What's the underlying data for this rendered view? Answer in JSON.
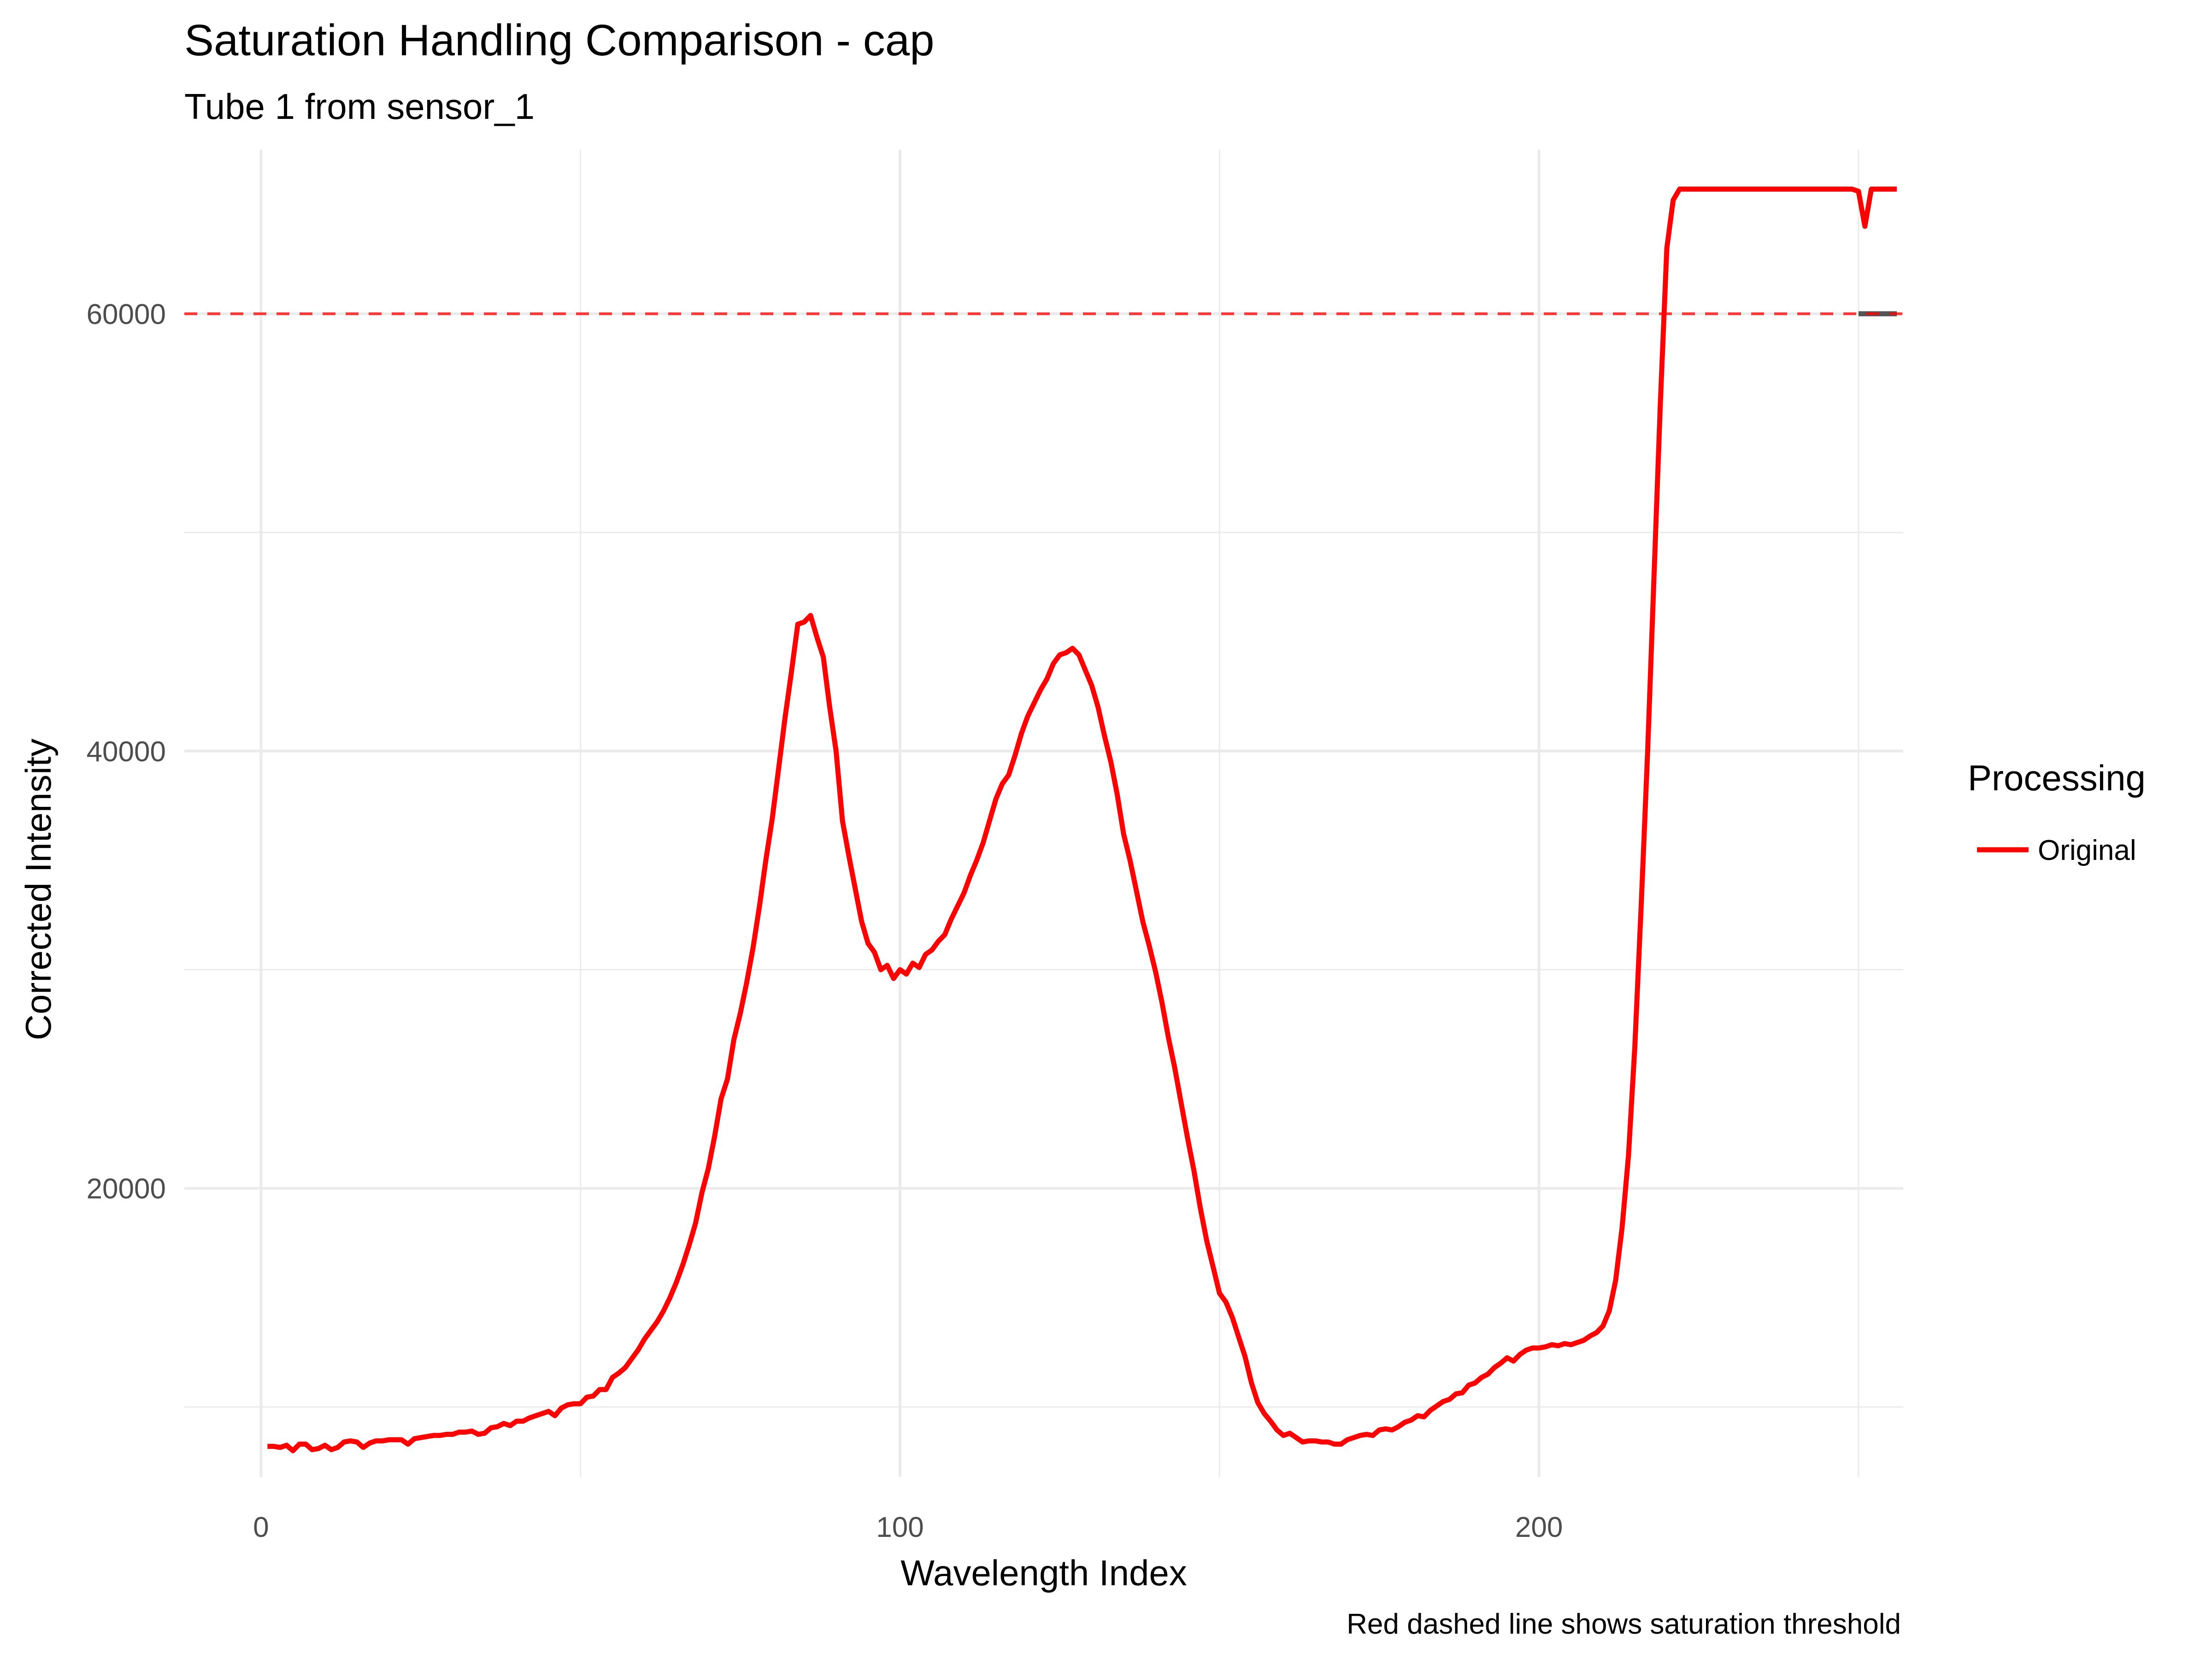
{
  "chart_data": {
    "type": "line",
    "title": "Saturation Handling Comparison - cap",
    "subtitle": "Tube 1 from sensor_1",
    "xlabel": "Wavelength Index",
    "ylabel": "Corrected Intensity",
    "caption": "Red dashed line shows saturation threshold",
    "xlim": [
      -12,
      257
    ],
    "ylim": [
      6800,
      67500
    ],
    "x_ticks": [
      0,
      100,
      200
    ],
    "x_tick_labels": [
      "0",
      "100",
      "200"
    ],
    "x_minor_ticks": [
      50,
      150,
      250
    ],
    "y_ticks": [
      20000,
      40000,
      60000
    ],
    "y_tick_labels": [
      "20000",
      "40000",
      "60000"
    ],
    "y_minor_ticks": [
      10000,
      30000,
      50000
    ],
    "grid": true,
    "legend": {
      "title": "Processing",
      "position": "right",
      "entries": [
        {
          "label": "Original",
          "color": "#ff0000"
        }
      ]
    },
    "threshold": {
      "value": 60000,
      "color": "#ff0000",
      "style": "dashed"
    },
    "series": [
      {
        "name": "Original",
        "color": "#ff0000",
        "points": [
          [
            1,
            8200
          ],
          [
            2,
            8200
          ],
          [
            3,
            8150
          ],
          [
            4,
            8250
          ],
          [
            5,
            8000
          ],
          [
            6,
            8300
          ],
          [
            7,
            8300
          ],
          [
            8,
            8050
          ],
          [
            9,
            8100
          ],
          [
            10,
            8250
          ],
          [
            11,
            8050
          ],
          [
            12,
            8150
          ],
          [
            13,
            8400
          ],
          [
            14,
            8450
          ],
          [
            15,
            8400
          ],
          [
            16,
            8150
          ],
          [
            17,
            8350
          ],
          [
            18,
            8450
          ],
          [
            19,
            8450
          ],
          [
            20,
            8500
          ],
          [
            21,
            8500
          ],
          [
            22,
            8500
          ],
          [
            23,
            8300
          ],
          [
            24,
            8550
          ],
          [
            25,
            8600
          ],
          [
            26,
            8650
          ],
          [
            27,
            8700
          ],
          [
            28,
            8700
          ],
          [
            29,
            8750
          ],
          [
            30,
            8750
          ],
          [
            31,
            8850
          ],
          [
            32,
            8850
          ],
          [
            33,
            8900
          ],
          [
            34,
            8750
          ],
          [
            35,
            8800
          ],
          [
            36,
            9050
          ],
          [
            37,
            9100
          ],
          [
            38,
            9250
          ],
          [
            39,
            9150
          ],
          [
            40,
            9350
          ],
          [
            41,
            9350
          ],
          [
            42,
            9500
          ],
          [
            43,
            9600
          ],
          [
            44,
            9700
          ],
          [
            45,
            9800
          ],
          [
            46,
            9600
          ],
          [
            47,
            9950
          ],
          [
            48,
            10100
          ],
          [
            49,
            10150
          ],
          [
            50,
            10150
          ],
          [
            51,
            10450
          ],
          [
            52,
            10500
          ],
          [
            53,
            10800
          ],
          [
            54,
            10800
          ],
          [
            55,
            11350
          ],
          [
            56,
            11550
          ],
          [
            57,
            11800
          ],
          [
            58,
            12200
          ],
          [
            59,
            12600
          ],
          [
            60,
            13100
          ],
          [
            61,
            13500
          ],
          [
            62,
            13900
          ],
          [
            63,
            14400
          ],
          [
            64,
            15000
          ],
          [
            65,
            15700
          ],
          [
            66,
            16500
          ],
          [
            67,
            17400
          ],
          [
            68,
            18400
          ],
          [
            69,
            19800
          ],
          [
            70,
            20900
          ],
          [
            71,
            22400
          ],
          [
            72,
            24100
          ],
          [
            73,
            25000
          ],
          [
            74,
            26800
          ],
          [
            75,
            28000
          ],
          [
            76,
            29400
          ],
          [
            77,
            31000
          ],
          [
            78,
            32900
          ],
          [
            79,
            35000
          ],
          [
            80,
            36900
          ],
          [
            81,
            39200
          ],
          [
            82,
            41500
          ],
          [
            83,
            43600
          ],
          [
            84,
            45800
          ],
          [
            85,
            45900
          ],
          [
            86,
            46200
          ],
          [
            87,
            45200
          ],
          [
            88,
            44300
          ],
          [
            89,
            42000
          ],
          [
            90,
            40000
          ],
          [
            91,
            36800
          ],
          [
            92,
            35200
          ],
          [
            93,
            33700
          ],
          [
            94,
            32200
          ],
          [
            95,
            31200
          ],
          [
            96,
            30800
          ],
          [
            97,
            30000
          ],
          [
            98,
            30200
          ],
          [
            99,
            29600
          ],
          [
            100,
            30000
          ],
          [
            101,
            29800
          ],
          [
            102,
            30300
          ],
          [
            103,
            30100
          ],
          [
            104,
            30700
          ],
          [
            105,
            30900
          ],
          [
            106,
            31300
          ],
          [
            107,
            31600
          ],
          [
            108,
            32300
          ],
          [
            109,
            32900
          ],
          [
            110,
            33500
          ],
          [
            111,
            34300
          ],
          [
            112,
            35000
          ],
          [
            113,
            35800
          ],
          [
            114,
            36800
          ],
          [
            115,
            37800
          ],
          [
            116,
            38500
          ],
          [
            117,
            38900
          ],
          [
            118,
            39800
          ],
          [
            119,
            40800
          ],
          [
            120,
            41600
          ],
          [
            121,
            42200
          ],
          [
            122,
            42800
          ],
          [
            123,
            43300
          ],
          [
            124,
            44000
          ],
          [
            125,
            44400
          ],
          [
            126,
            44500
          ],
          [
            127,
            44700
          ],
          [
            128,
            44400
          ],
          [
            129,
            43700
          ],
          [
            130,
            43000
          ],
          [
            131,
            42000
          ],
          [
            132,
            40700
          ],
          [
            133,
            39500
          ],
          [
            134,
            38000
          ],
          [
            135,
            36200
          ],
          [
            136,
            35000
          ],
          [
            137,
            33600
          ],
          [
            138,
            32200
          ],
          [
            139,
            31100
          ],
          [
            140,
            29900
          ],
          [
            141,
            28500
          ],
          [
            142,
            26900
          ],
          [
            143,
            25500
          ],
          [
            144,
            23900
          ],
          [
            145,
            22300
          ],
          [
            146,
            20800
          ],
          [
            147,
            19100
          ],
          [
            148,
            17600
          ],
          [
            149,
            16400
          ],
          [
            150,
            15200
          ],
          [
            151,
            14800
          ],
          [
            152,
            14100
          ],
          [
            153,
            13200
          ],
          [
            154,
            12300
          ],
          [
            155,
            11100
          ],
          [
            156,
            10200
          ],
          [
            157,
            9700
          ],
          [
            158,
            9350
          ],
          [
            159,
            8950
          ],
          [
            160,
            8700
          ],
          [
            161,
            8800
          ],
          [
            162,
            8600
          ],
          [
            163,
            8400
          ],
          [
            164,
            8450
          ],
          [
            165,
            8450
          ],
          [
            166,
            8400
          ],
          [
            167,
            8400
          ],
          [
            168,
            8300
          ],
          [
            169,
            8300
          ],
          [
            170,
            8500
          ],
          [
            171,
            8600
          ],
          [
            172,
            8700
          ],
          [
            173,
            8750
          ],
          [
            174,
            8700
          ],
          [
            175,
            8950
          ],
          [
            176,
            9000
          ],
          [
            177,
            8950
          ],
          [
            178,
            9100
          ],
          [
            179,
            9300
          ],
          [
            180,
            9400
          ],
          [
            181,
            9600
          ],
          [
            182,
            9550
          ],
          [
            183,
            9850
          ],
          [
            184,
            10050
          ],
          [
            185,
            10250
          ],
          [
            186,
            10350
          ],
          [
            187,
            10600
          ],
          [
            188,
            10650
          ],
          [
            189,
            11000
          ],
          [
            190,
            11100
          ],
          [
            191,
            11350
          ],
          [
            192,
            11500
          ],
          [
            193,
            11800
          ],
          [
            194,
            12000
          ],
          [
            195,
            12250
          ],
          [
            196,
            12100
          ],
          [
            197,
            12400
          ],
          [
            198,
            12600
          ],
          [
            199,
            12700
          ],
          [
            200,
            12700
          ],
          [
            201,
            12750
          ],
          [
            202,
            12850
          ],
          [
            203,
            12800
          ],
          [
            204,
            12900
          ],
          [
            205,
            12850
          ],
          [
            206,
            12950
          ],
          [
            207,
            13050
          ],
          [
            208,
            13250
          ],
          [
            209,
            13400
          ],
          [
            210,
            13700
          ],
          [
            211,
            14400
          ],
          [
            212,
            15800
          ],
          [
            213,
            18200
          ],
          [
            214,
            21500
          ],
          [
            215,
            26500
          ],
          [
            216,
            33000
          ],
          [
            217,
            40000
          ],
          [
            218,
            48000
          ],
          [
            219,
            56000
          ],
          [
            220,
            63000
          ],
          [
            221,
            65200
          ],
          [
            222,
            65700
          ],
          [
            223,
            65700
          ],
          [
            224,
            65700
          ],
          [
            225,
            65700
          ],
          [
            226,
            65700
          ],
          [
            227,
            65700
          ],
          [
            228,
            65700
          ],
          [
            229,
            65700
          ],
          [
            230,
            65700
          ],
          [
            231,
            65700
          ],
          [
            232,
            65700
          ],
          [
            233,
            65700
          ],
          [
            234,
            65700
          ],
          [
            235,
            65700
          ],
          [
            236,
            65700
          ],
          [
            237,
            65700
          ],
          [
            238,
            65700
          ],
          [
            239,
            65700
          ],
          [
            240,
            65700
          ],
          [
            241,
            65700
          ],
          [
            242,
            65700
          ],
          [
            243,
            65700
          ],
          [
            244,
            65700
          ],
          [
            245,
            65700
          ],
          [
            246,
            65700
          ],
          [
            247,
            65700
          ],
          [
            248,
            65700
          ],
          [
            249,
            65700
          ],
          [
            250,
            65600
          ],
          [
            251,
            64000
          ],
          [
            252,
            65700
          ],
          [
            253,
            65700
          ],
          [
            254,
            65700
          ],
          [
            255,
            65700
          ],
          [
            256,
            65700
          ]
        ]
      }
    ],
    "capped_segment": {
      "x": [
        250,
        256
      ],
      "y": 60000,
      "color": "#555555"
    }
  }
}
